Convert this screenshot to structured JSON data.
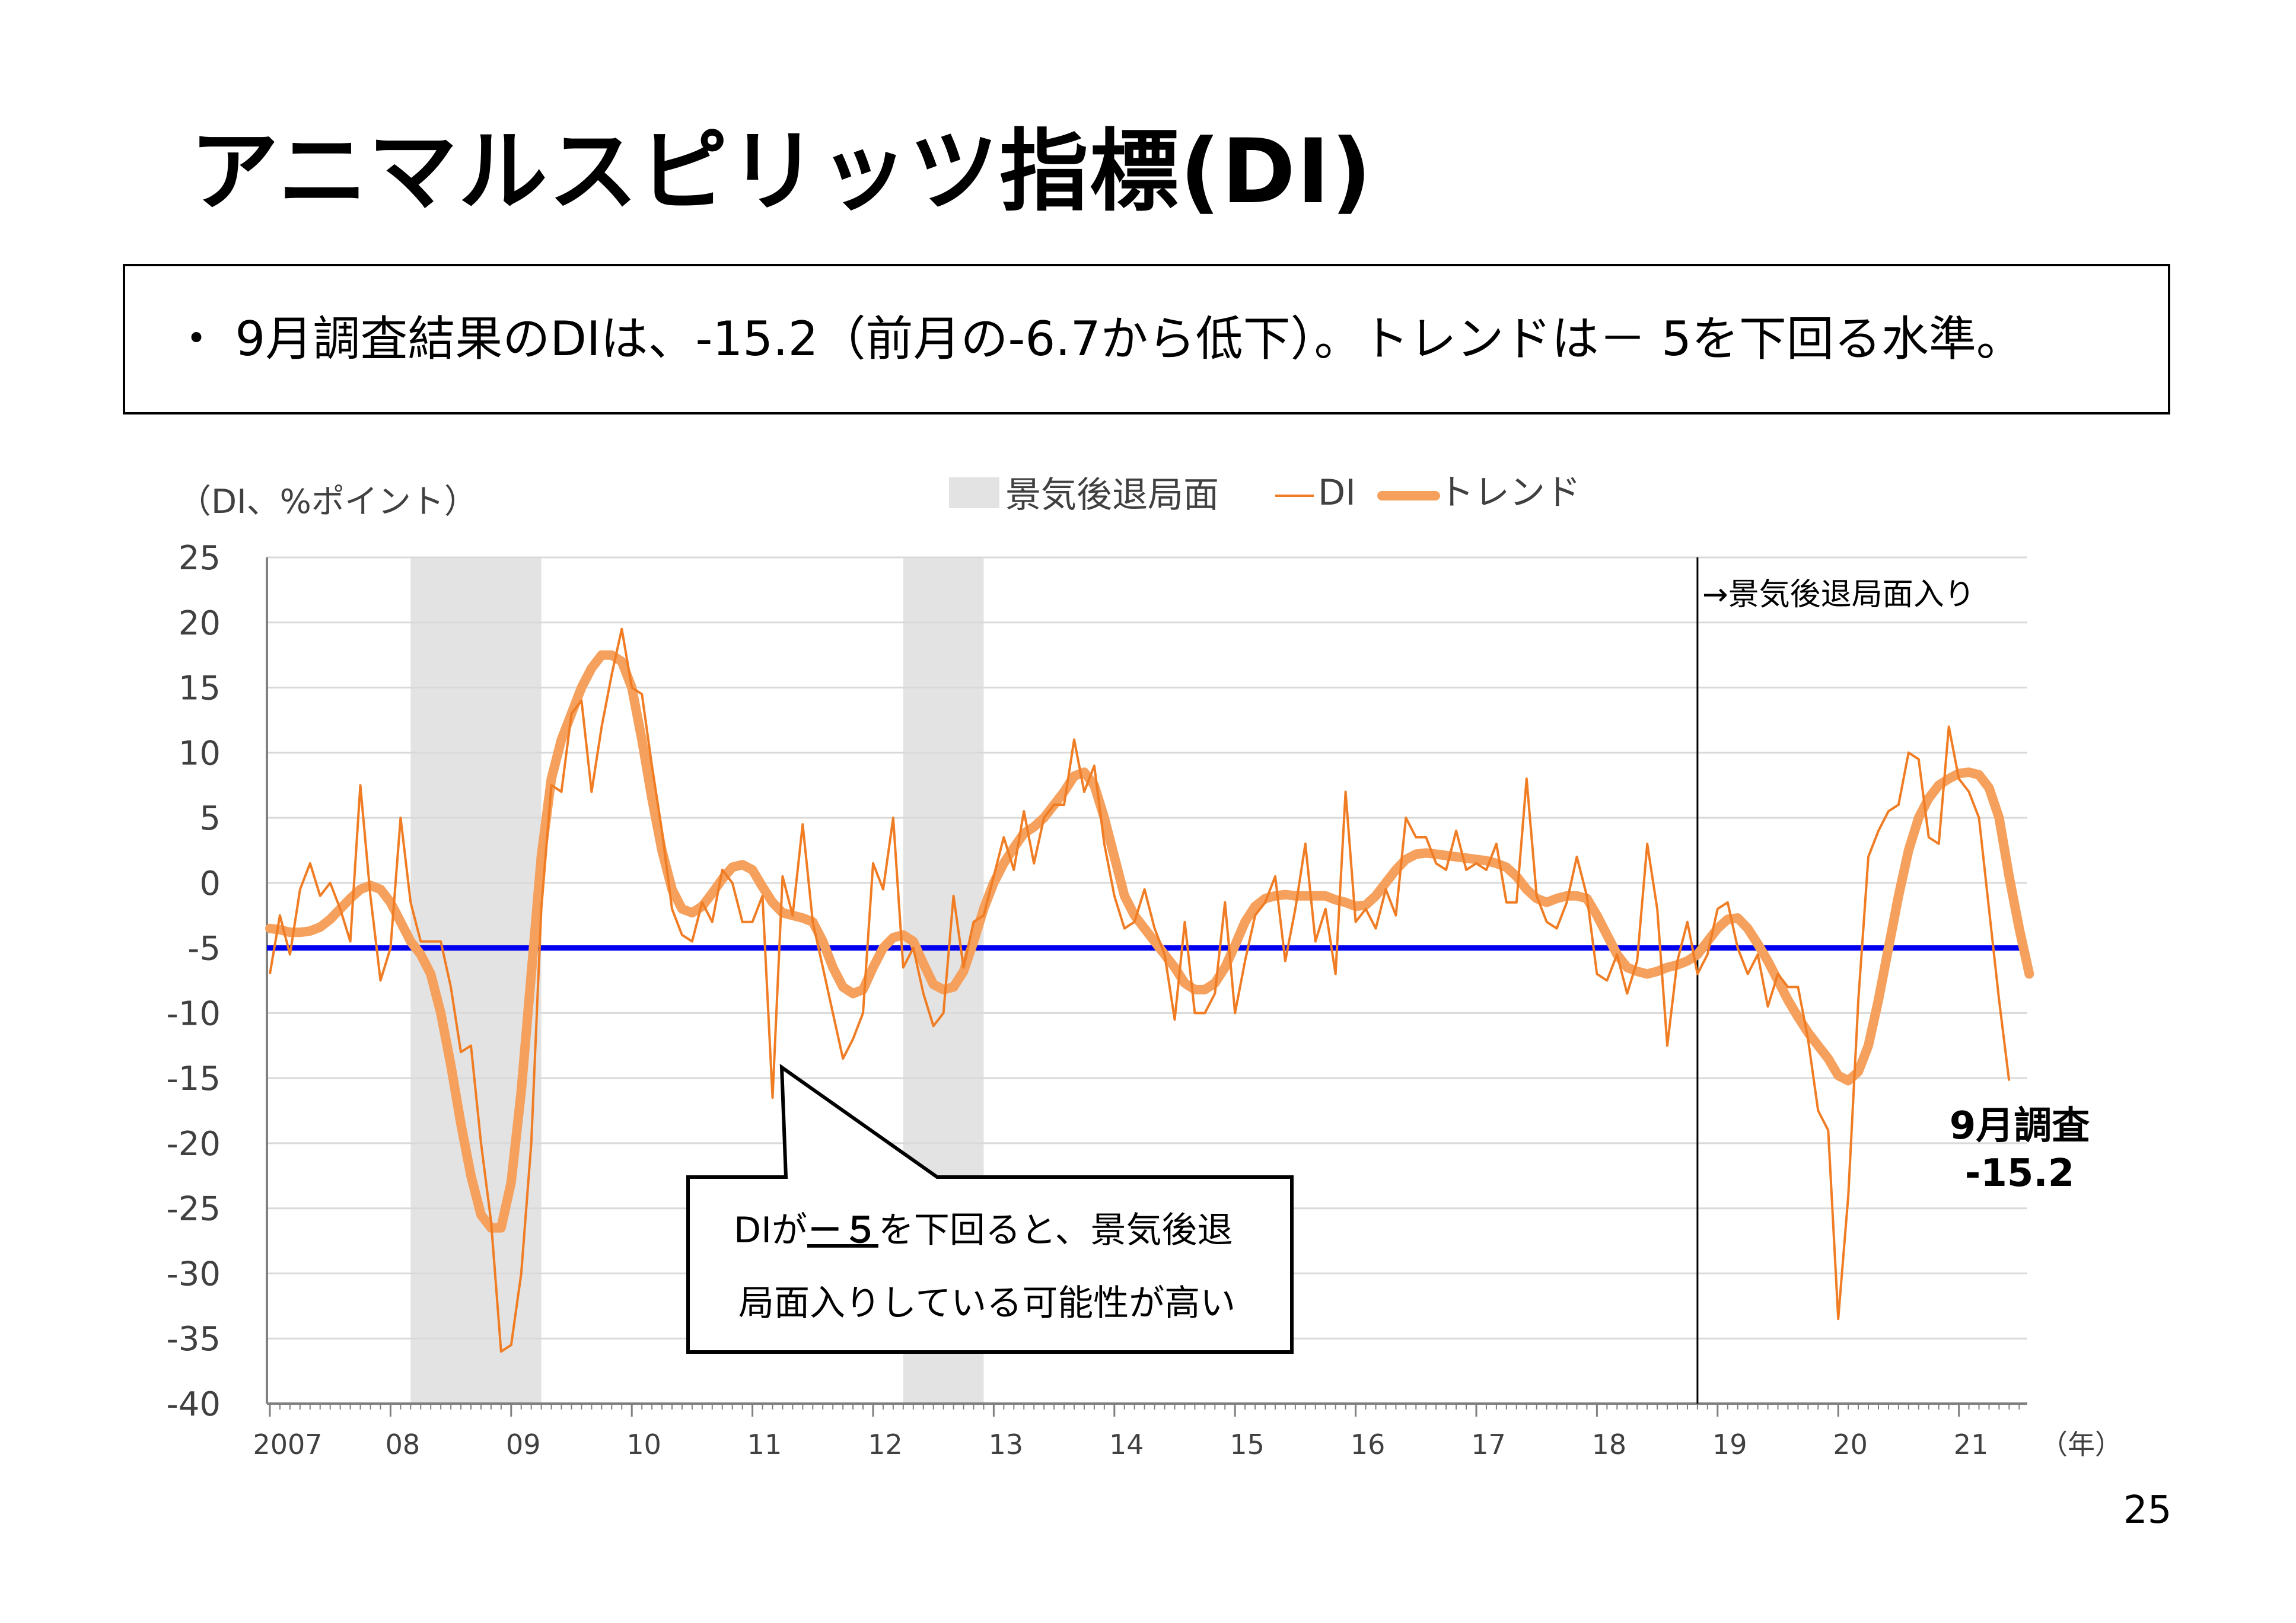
{
  "page": {
    "title": "アニマルスピリッツ指標(DI)",
    "summary": "・ 9月調査結果のDIは、-15.2（前月の-6.7から低下）。トレンドは－ 5を下回る水準。",
    "page_number": "25"
  },
  "chart_data": {
    "type": "line",
    "title": "",
    "ylabel": "（DI、%ポイント）",
    "xlabel": "（年）",
    "ylim": [
      -40,
      25
    ],
    "y_ticks": [
      25,
      20,
      15,
      10,
      5,
      0,
      -5,
      -10,
      -15,
      -20,
      -25,
      -30,
      -35,
      -40
    ],
    "x_start": "2007-01",
    "x_tick_labels": [
      "2007",
      "08",
      "09",
      "10",
      "11",
      "12",
      "13",
      "14",
      "15",
      "16",
      "17",
      "18",
      "19",
      "20",
      "21"
    ],
    "grid": true,
    "legend": {
      "placement": "top-center",
      "recession": "景気後退局面",
      "di": "DI",
      "trend": "トレンド"
    },
    "recession_periods": [
      [
        "2008-03",
        "2009-03"
      ],
      [
        "2012-04",
        "2012-11"
      ]
    ],
    "threshold": {
      "value": -5,
      "color": "#0000ee"
    },
    "vline": {
      "date": "2018-11",
      "label": "→景気後退局面入り"
    },
    "callout": {
      "line1_pre": "DIが",
      "line1_emph": "－５",
      "line1_post": "を下回ると、景気後退",
      "line2": "局面入りしている可能性が高い"
    },
    "final_label": {
      "line1": "9月調査",
      "line2": "-15.2"
    },
    "colors": {
      "di": "#f07c24",
      "trend": "#f5a05c",
      "recession": "#e3e3e3",
      "grid": "#d9d9d9"
    },
    "series": [
      {
        "name": "DI",
        "values": [
          -7,
          -2.5,
          -5.5,
          -0.5,
          1.5,
          -1,
          0,
          -2,
          -4.5,
          7.5,
          -1,
          -7.5,
          -5,
          5,
          -1.5,
          -4.5,
          -4.5,
          -4.5,
          -8,
          -13,
          -12.5,
          -20,
          -26,
          -36,
          -35.5,
          -30,
          -20,
          -2,
          7.5,
          7,
          13,
          14,
          7,
          12,
          16,
          19.5,
          15,
          14.5,
          9,
          4,
          -2,
          -4,
          -4.5,
          -1.5,
          -3,
          1,
          0,
          -3,
          -3,
          -1,
          -16.5,
          0.5,
          -2.5,
          4.5,
          -3,
          -6.5,
          -10,
          -13.5,
          -12,
          -10,
          1.5,
          -0.5,
          5,
          -6.5,
          -5,
          -8.5,
          -11,
          -10,
          -1,
          -6.5,
          -3,
          -2.5,
          0.5,
          3.5,
          1,
          5.5,
          1.5,
          5,
          6,
          6,
          11,
          7,
          9,
          3,
          -1,
          -3.5,
          -3,
          -0.5,
          -3.5,
          -5.5,
          -10.5,
          -3,
          -10,
          -10,
          -8.5,
          -1.5,
          -10,
          -6,
          -2.5,
          -1.5,
          0.5,
          -6,
          -2,
          3,
          -4.5,
          -2,
          -7,
          7,
          -3,
          -2,
          -3.5,
          -0.5,
          -2.5,
          5,
          3.5,
          3.5,
          1.5,
          1,
          4,
          1,
          1.5,
          1,
          3,
          -1.5,
          -1.5,
          8,
          -1,
          -3,
          -3.5,
          -1.5,
          2,
          -1,
          -7,
          -7.5,
          -5.5,
          -8.5,
          -6,
          3,
          -2,
          -12.5,
          -6,
          -3,
          -7,
          -5.5,
          -2,
          -1.5,
          -5,
          -7,
          -5.5,
          -9.5,
          -7,
          -8,
          -8,
          -12,
          -17.5,
          -19,
          -33.5,
          -24,
          -9,
          2,
          4,
          5.5,
          6,
          10,
          9.5,
          3.5,
          3,
          12,
          8,
          7,
          5,
          -2,
          -9,
          -15.2
        ]
      },
      {
        "name": "トレンド",
        "values": [
          -3.5,
          -3.6,
          -3.8,
          -3.8,
          -3.7,
          -3.4,
          -2.8,
          -2,
          -1.2,
          -0.5,
          -0.2,
          -0.5,
          -1.5,
          -3,
          -4.5,
          -5.5,
          -7,
          -10,
          -14,
          -18.5,
          -22.5,
          -25.5,
          -26.5,
          -26.5,
          -23,
          -16,
          -7,
          2,
          8,
          11,
          13,
          15,
          16.5,
          17.5,
          17.5,
          17,
          15,
          11,
          6.5,
          2.5,
          -0.5,
          -2,
          -2.3,
          -1.8,
          -0.8,
          0.3,
          1.2,
          1.4,
          1,
          -0.3,
          -1.5,
          -2.3,
          -2.5,
          -2.7,
          -3,
          -4.5,
          -6.5,
          -8,
          -8.5,
          -8.2,
          -6.5,
          -5,
          -4.2,
          -4,
          -4.5,
          -6.2,
          -7.8,
          -8.2,
          -8,
          -6.8,
          -4.5,
          -2,
          0,
          1.5,
          2.7,
          3.8,
          4.3,
          5,
          6,
          7,
          8.2,
          8.5,
          7.5,
          5,
          2,
          -1,
          -2.5,
          -3.5,
          -4.5,
          -5.5,
          -6.5,
          -7.7,
          -8.2,
          -8.2,
          -7.7,
          -6.5,
          -4.8,
          -3,
          -1.8,
          -1.2,
          -1,
          -0.9,
          -1,
          -1,
          -1,
          -1,
          -1.3,
          -1.5,
          -1.8,
          -1.7,
          -1,
          0,
          1,
          1.8,
          2.2,
          2.3,
          2.2,
          2.1,
          2,
          1.9,
          1.8,
          1.7,
          1.5,
          1.2,
          0.5,
          -0.5,
          -1.2,
          -1.5,
          -1.2,
          -1,
          -1,
          -1.2,
          -2.5,
          -4,
          -5.5,
          -6.5,
          -6.8,
          -7,
          -6.8,
          -6.5,
          -6.3,
          -6,
          -5.5,
          -4.5,
          -3.5,
          -2.8,
          -2.7,
          -3.5,
          -4.7,
          -6,
          -7.5,
          -9,
          -10.3,
          -11.5,
          -12.5,
          -13.5,
          -14.8,
          -15.2,
          -14.5,
          -12.5,
          -9,
          -5,
          -1,
          2.5,
          5,
          6.5,
          7.5,
          8,
          8.4,
          8.5,
          8.3,
          7.3,
          5,
          0.5,
          -3.5,
          -7
        ]
      }
    ]
  }
}
